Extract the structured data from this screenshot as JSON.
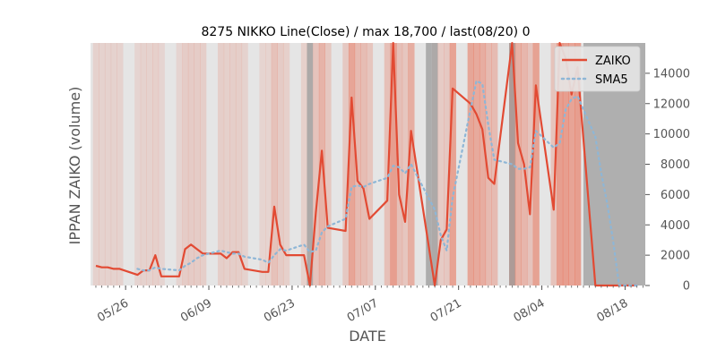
{
  "chart_data": {
    "type": "line",
    "title": "8275 NIKKO Line(Close) / max 18,700 / last(08/20) 0",
    "xlabel": "DATE",
    "ylabel": "IPPAN ZAIKO (volume)",
    "x_start": "2018-05-21",
    "x_end": "2018-08-20",
    "ylim": [
      0,
      16000
    ],
    "yticks": [
      0,
      2000,
      4000,
      6000,
      8000,
      10000,
      12000,
      14000
    ],
    "ytick_labels": [
      "0",
      "2000",
      "4000",
      "6000",
      "8000",
      "10000",
      "12000",
      "14000"
    ],
    "xticks": [
      "2018-05-26",
      "2018-06-09",
      "2018-06-23",
      "2018-07-07",
      "2018-07-21",
      "2018-08-04",
      "2018-08-18"
    ],
    "xtick_labels": [
      "05/26",
      "06/09",
      "06/23",
      "07/07",
      "07/21",
      "08/04",
      "08/18"
    ],
    "legend_position": "top-right",
    "grid": false,
    "colors": {
      "zaiko": "#e24a33",
      "sma5": "#8eb6d6",
      "plot_bg": "#e5e5e5",
      "shade": "#e8735a",
      "gap": "#999999"
    },
    "series": [
      {
        "name": "ZAIKO",
        "style": "solid",
        "values": [
          [
            "2018-05-21",
            1300
          ],
          [
            "2018-05-22",
            1200
          ],
          [
            "2018-05-23",
            1200
          ],
          [
            "2018-05-24",
            1100
          ],
          [
            "2018-05-25",
            1100
          ],
          [
            "2018-05-28",
            700
          ],
          [
            "2018-05-29",
            1000
          ],
          [
            "2018-05-30",
            1000
          ],
          [
            "2018-05-31",
            2000
          ],
          [
            "2018-06-01",
            600
          ],
          [
            "2018-06-04",
            600
          ],
          [
            "2018-06-05",
            2400
          ],
          [
            "2018-06-06",
            2700
          ],
          [
            "2018-06-07",
            2400
          ],
          [
            "2018-06-08",
            2100
          ],
          [
            "2018-06-11",
            2100
          ],
          [
            "2018-06-12",
            1800
          ],
          [
            "2018-06-13",
            2200
          ],
          [
            "2018-06-14",
            2200
          ],
          [
            "2018-06-15",
            1100
          ],
          [
            "2018-06-18",
            900
          ],
          [
            "2018-06-19",
            900
          ],
          [
            "2018-06-20",
            5200
          ],
          [
            "2018-06-21",
            2700
          ],
          [
            "2018-06-22",
            2000
          ],
          [
            "2018-06-25",
            2000
          ],
          [
            "2018-06-26",
            0
          ],
          [
            "2018-06-27",
            4800
          ],
          [
            "2018-06-28",
            8900
          ],
          [
            "2018-06-29",
            3800
          ],
          [
            "2018-07-02",
            3600
          ],
          [
            "2018-07-03",
            12400
          ],
          [
            "2018-07-04",
            6900
          ],
          [
            "2018-07-05",
            6400
          ],
          [
            "2018-07-06",
            4400
          ],
          [
            "2018-07-09",
            5600
          ],
          [
            "2018-07-10",
            16000
          ],
          [
            "2018-07-11",
            6000
          ],
          [
            "2018-07-12",
            4200
          ],
          [
            "2018-07-13",
            10200
          ],
          [
            "2018-07-17",
            0
          ],
          [
            "2018-07-18",
            3000
          ],
          [
            "2018-07-19",
            3700
          ],
          [
            "2018-07-20",
            13000
          ],
          [
            "2018-07-23",
            12000
          ],
          [
            "2018-07-24",
            11300
          ],
          [
            "2018-07-25",
            10300
          ],
          [
            "2018-07-26",
            7100
          ],
          [
            "2018-07-27",
            6700
          ],
          [
            "2018-07-30",
            16000
          ],
          [
            "2018-07-31",
            9400
          ],
          [
            "2018-08-01",
            8000
          ],
          [
            "2018-08-02",
            4700
          ],
          [
            "2018-08-03",
            13200
          ],
          [
            "2018-08-06",
            5000
          ],
          [
            "2018-08-07",
            16000
          ],
          [
            "2018-08-08",
            15000
          ],
          [
            "2018-08-09",
            12600
          ],
          [
            "2018-08-10",
            14400
          ],
          [
            "2018-08-13",
            0
          ],
          [
            "2018-08-14",
            0
          ],
          [
            "2018-08-15",
            0
          ],
          [
            "2018-08-16",
            0
          ],
          [
            "2018-08-17",
            0
          ],
          [
            "2018-08-20",
            0
          ]
        ]
      },
      {
        "name": "SMA5",
        "style": "dotted",
        "values": [
          [
            "2018-05-28",
            1100
          ],
          [
            "2018-05-29",
            1000
          ],
          [
            "2018-05-30",
            1000
          ],
          [
            "2018-05-31",
            1200
          ],
          [
            "2018-06-01",
            1100
          ],
          [
            "2018-06-04",
            1000
          ],
          [
            "2018-06-05",
            1300
          ],
          [
            "2018-06-06",
            1500
          ],
          [
            "2018-06-07",
            1800
          ],
          [
            "2018-06-08",
            2000
          ],
          [
            "2018-06-11",
            2300
          ],
          [
            "2018-06-12",
            2200
          ],
          [
            "2018-06-13",
            2100
          ],
          [
            "2018-06-14",
            2100
          ],
          [
            "2018-06-15",
            1900
          ],
          [
            "2018-06-18",
            1700
          ],
          [
            "2018-06-19",
            1500
          ],
          [
            "2018-06-20",
            2000
          ],
          [
            "2018-06-21",
            2400
          ],
          [
            "2018-06-22",
            2300
          ],
          [
            "2018-06-25",
            2700
          ],
          [
            "2018-06-26",
            2200
          ],
          [
            "2018-06-27",
            2300
          ],
          [
            "2018-06-28",
            3500
          ],
          [
            "2018-06-29",
            3900
          ],
          [
            "2018-07-02",
            4400
          ],
          [
            "2018-07-03",
            6500
          ],
          [
            "2018-07-04",
            6600
          ],
          [
            "2018-07-05",
            6500
          ],
          [
            "2018-07-06",
            6700
          ],
          [
            "2018-07-09",
            7100
          ],
          [
            "2018-07-10",
            7900
          ],
          [
            "2018-07-11",
            7800
          ],
          [
            "2018-07-12",
            7400
          ],
          [
            "2018-07-13",
            8000
          ],
          [
            "2018-07-17",
            5000
          ],
          [
            "2018-07-18",
            3300
          ],
          [
            "2018-07-19",
            2300
          ],
          [
            "2018-07-20",
            5800
          ],
          [
            "2018-07-23",
            11600
          ],
          [
            "2018-07-24",
            13500
          ],
          [
            "2018-07-25",
            13300
          ],
          [
            "2018-07-26",
            10600
          ],
          [
            "2018-07-27",
            8300
          ],
          [
            "2018-07-30",
            8000
          ],
          [
            "2018-07-31",
            7700
          ],
          [
            "2018-08-01",
            7700
          ],
          [
            "2018-08-02",
            7800
          ],
          [
            "2018-08-03",
            10200
          ],
          [
            "2018-08-06",
            9100
          ],
          [
            "2018-08-07",
            9400
          ],
          [
            "2018-08-08",
            11600
          ],
          [
            "2018-08-09",
            12300
          ],
          [
            "2018-08-10",
            12500
          ],
          [
            "2018-08-13",
            9800
          ],
          [
            "2018-08-14",
            7400
          ],
          [
            "2018-08-15",
            5400
          ],
          [
            "2018-08-16",
            2900
          ],
          [
            "2018-08-17",
            0
          ],
          [
            "2018-08-20",
            0
          ]
        ]
      }
    ],
    "gap_dates": [
      "2018-06-26",
      "2018-07-16",
      "2018-07-17",
      "2018-07-30"
    ],
    "gray_after": "2018-08-11"
  }
}
